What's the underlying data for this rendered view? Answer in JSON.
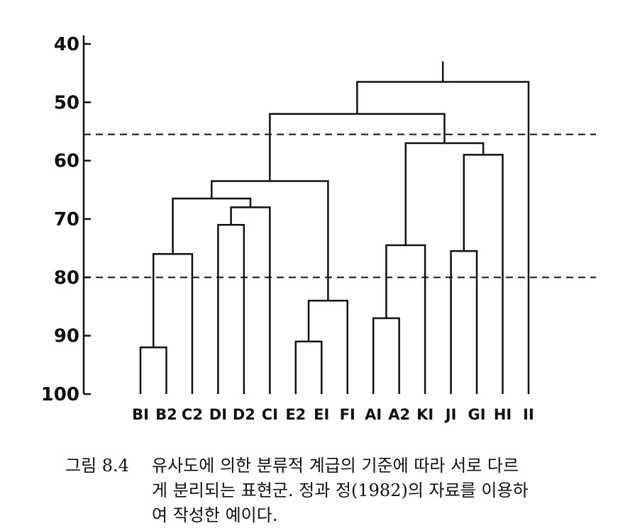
{
  "chart_data": {
    "type": "dendrogram",
    "title": "",
    "xlabel": "",
    "ylabel": "",
    "ylim": [
      40,
      100
    ],
    "y_inverted": true,
    "yticks": [
      "40",
      "50",
      "60",
      "70",
      "80",
      "90",
      "100"
    ],
    "leaves": [
      "BI",
      "B2",
      "C2",
      "DI",
      "D2",
      "CI",
      "E2",
      "EI",
      "FI",
      "AI",
      "A2",
      "KI",
      "JI",
      "GI",
      "HI",
      "II"
    ],
    "merges": [
      {
        "left": "BI",
        "right": "B2",
        "similarity": 92
      },
      {
        "left": "BI+B2",
        "right": "C2",
        "similarity": 76
      },
      {
        "left": "DI",
        "right": "D2",
        "similarity": 71
      },
      {
        "left": "DI+D2",
        "right": "CI",
        "similarity": 68
      },
      {
        "left": "BI+B2+C2",
        "right": "DI+D2+CI",
        "similarity": 66.5
      },
      {
        "left": "E2",
        "right": "EI",
        "similarity": 91
      },
      {
        "left": "E2+EI",
        "right": "FI",
        "similarity": 84
      },
      {
        "left": "B-C-D group",
        "right": "E2+EI+FI",
        "similarity": 63.5
      },
      {
        "left": "AI",
        "right": "A2",
        "similarity": 87
      },
      {
        "left": "AI+A2",
        "right": "KI",
        "similarity": 74.5
      },
      {
        "left": "JI",
        "right": "GI",
        "similarity": 75.5
      },
      {
        "left": "JI+GI",
        "right": "HI",
        "similarity": 59
      },
      {
        "left": "AI+A2+KI",
        "right": "JI+GI+HI",
        "similarity": 57
      },
      {
        "left": "B-F group",
        "right": "A-K group",
        "similarity": 52
      },
      {
        "left": "B-K group",
        "right": "II",
        "similarity": 46.5
      }
    ],
    "root_similarity": 43,
    "cut_lines": [
      55.5,
      80
    ]
  },
  "caption": {
    "label": "그림 8.4",
    "lines": [
      "유사도에 의한 분류적 계급의 기준에 따라 서로 다르",
      "게 분리되는 표현군. 정과 정(1982)의 자료를 이용하",
      "여 작성한 예이다."
    ]
  }
}
